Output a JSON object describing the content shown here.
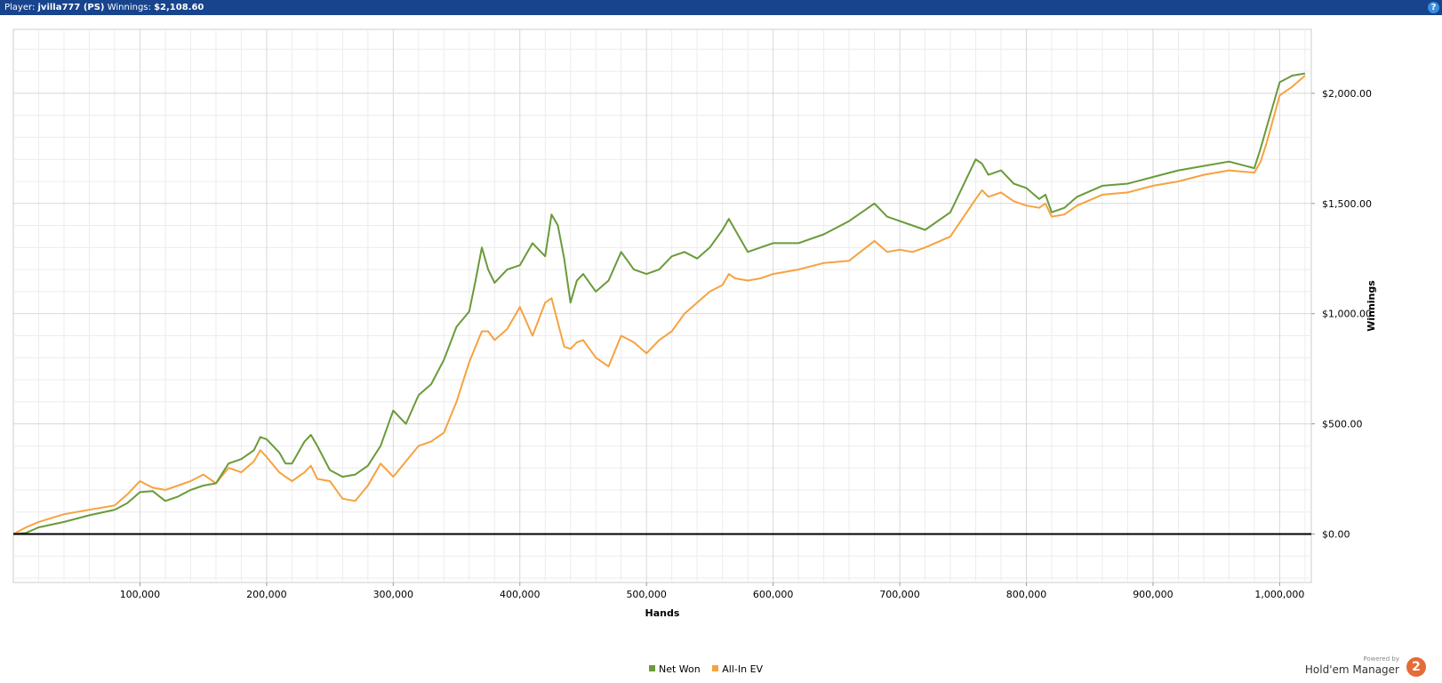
{
  "header": {
    "player_label": "Player:",
    "player_name": "jvilla777 (PS)",
    "winnings_label": "Winnings:",
    "winnings_value": "$2,108.60",
    "help_glyph": "?"
  },
  "branding": {
    "powered_by": "Powered by",
    "product": "Hold'em Manager",
    "logo_glyph": "2"
  },
  "colors": {
    "header_bg": "#17448d",
    "net_won": "#6a9a3a",
    "all_in_ev": "#f7a240",
    "zero_line": "#000000",
    "grid": "#d8d8d8"
  },
  "chart_data": {
    "type": "line",
    "xlabel": "Hands",
    "ylabel": "Winnings",
    "xlim": [
      0,
      1025000
    ],
    "ylim": [
      -220,
      2290
    ],
    "x_ticks": [
      100000,
      200000,
      300000,
      400000,
      500000,
      600000,
      700000,
      800000,
      900000,
      1000000
    ],
    "x_tick_labels": [
      "100,000",
      "200,000",
      "300,000",
      "400,000",
      "500,000",
      "600,000",
      "700,000",
      "800,000",
      "900,000",
      "1,000,000"
    ],
    "y_ticks": [
      0,
      500,
      1000,
      1500,
      2000
    ],
    "y_tick_labels": [
      "$0.00",
      "$500.00",
      "$1,000.00",
      "$1,500.00",
      "$2,000.00"
    ],
    "grid": true,
    "y_axis_side": "right",
    "legend_position": "bottom-center",
    "zero_line": true,
    "series": [
      {
        "name": "Net Won",
        "color": "#6a9a3a",
        "x": [
          0,
          10000,
          20000,
          40000,
          60000,
          80000,
          90000,
          100000,
          110000,
          120000,
          130000,
          140000,
          150000,
          160000,
          170000,
          180000,
          190000,
          195000,
          200000,
          210000,
          215000,
          220000,
          230000,
          235000,
          240000,
          250000,
          260000,
          270000,
          280000,
          290000,
          300000,
          310000,
          320000,
          330000,
          340000,
          350000,
          360000,
          365000,
          370000,
          375000,
          380000,
          390000,
          400000,
          410000,
          420000,
          425000,
          430000,
          435000,
          440000,
          445000,
          450000,
          460000,
          470000,
          480000,
          490000,
          500000,
          510000,
          520000,
          530000,
          540000,
          550000,
          560000,
          565000,
          570000,
          580000,
          590000,
          600000,
          620000,
          640000,
          660000,
          680000,
          690000,
          700000,
          710000,
          720000,
          740000,
          760000,
          765000,
          770000,
          780000,
          790000,
          800000,
          810000,
          815000,
          820000,
          830000,
          840000,
          860000,
          880000,
          900000,
          920000,
          940000,
          960000,
          980000,
          985000,
          990000,
          1000000,
          1010000,
          1020000
        ],
        "y": [
          0,
          5,
          30,
          55,
          85,
          110,
          140,
          190,
          195,
          150,
          170,
          200,
          220,
          230,
          320,
          340,
          380,
          440,
          430,
          370,
          320,
          320,
          420,
          450,
          400,
          290,
          260,
          270,
          310,
          400,
          560,
          500,
          630,
          680,
          790,
          940,
          1010,
          1150,
          1300,
          1200,
          1140,
          1200,
          1220,
          1320,
          1260,
          1450,
          1400,
          1250,
          1050,
          1150,
          1180,
          1100,
          1150,
          1280,
          1200,
          1180,
          1200,
          1260,
          1280,
          1250,
          1300,
          1380,
          1430,
          1380,
          1280,
          1300,
          1320,
          1320,
          1360,
          1420,
          1500,
          1440,
          1420,
          1400,
          1380,
          1460,
          1700,
          1680,
          1630,
          1650,
          1590,
          1570,
          1520,
          1540,
          1460,
          1480,
          1530,
          1580,
          1590,
          1620,
          1650,
          1670,
          1690,
          1660,
          1750,
          1850,
          2050,
          2080,
          2090
        ]
      },
      {
        "name": "All-In EV",
        "color": "#f7a240",
        "x": [
          0,
          10000,
          20000,
          40000,
          60000,
          80000,
          90000,
          100000,
          110000,
          120000,
          130000,
          140000,
          150000,
          160000,
          170000,
          180000,
          190000,
          195000,
          200000,
          210000,
          215000,
          220000,
          230000,
          235000,
          240000,
          250000,
          260000,
          270000,
          280000,
          290000,
          300000,
          310000,
          320000,
          330000,
          340000,
          350000,
          360000,
          365000,
          370000,
          375000,
          380000,
          390000,
          400000,
          410000,
          420000,
          425000,
          430000,
          435000,
          440000,
          445000,
          450000,
          460000,
          470000,
          480000,
          490000,
          500000,
          510000,
          520000,
          530000,
          540000,
          550000,
          560000,
          565000,
          570000,
          580000,
          590000,
          600000,
          620000,
          640000,
          660000,
          680000,
          690000,
          700000,
          710000,
          720000,
          740000,
          760000,
          765000,
          770000,
          780000,
          790000,
          800000,
          810000,
          815000,
          820000,
          830000,
          840000,
          860000,
          880000,
          900000,
          920000,
          940000,
          960000,
          980000,
          985000,
          990000,
          1000000,
          1010000,
          1020000
        ],
        "y": [
          0,
          30,
          55,
          90,
          110,
          130,
          180,
          240,
          210,
          200,
          220,
          240,
          270,
          230,
          300,
          280,
          330,
          380,
          350,
          280,
          260,
          240,
          280,
          310,
          250,
          240,
          160,
          150,
          220,
          320,
          260,
          330,
          400,
          420,
          460,
          600,
          780,
          850,
          920,
          920,
          880,
          930,
          1030,
          900,
          1050,
          1070,
          960,
          850,
          840,
          870,
          880,
          800,
          760,
          900,
          870,
          820,
          880,
          920,
          1000,
          1050,
          1100,
          1130,
          1180,
          1160,
          1150,
          1160,
          1180,
          1200,
          1230,
          1240,
          1330,
          1280,
          1290,
          1280,
          1300,
          1350,
          1520,
          1560,
          1530,
          1550,
          1510,
          1490,
          1480,
          1500,
          1440,
          1450,
          1490,
          1540,
          1550,
          1580,
          1600,
          1630,
          1650,
          1640,
          1690,
          1780,
          1990,
          2030,
          2080
        ]
      }
    ]
  },
  "legend": {
    "items": [
      {
        "label": "Net Won",
        "color": "#6a9a3a"
      },
      {
        "label": "All-In EV",
        "color": "#f7a240"
      }
    ]
  }
}
